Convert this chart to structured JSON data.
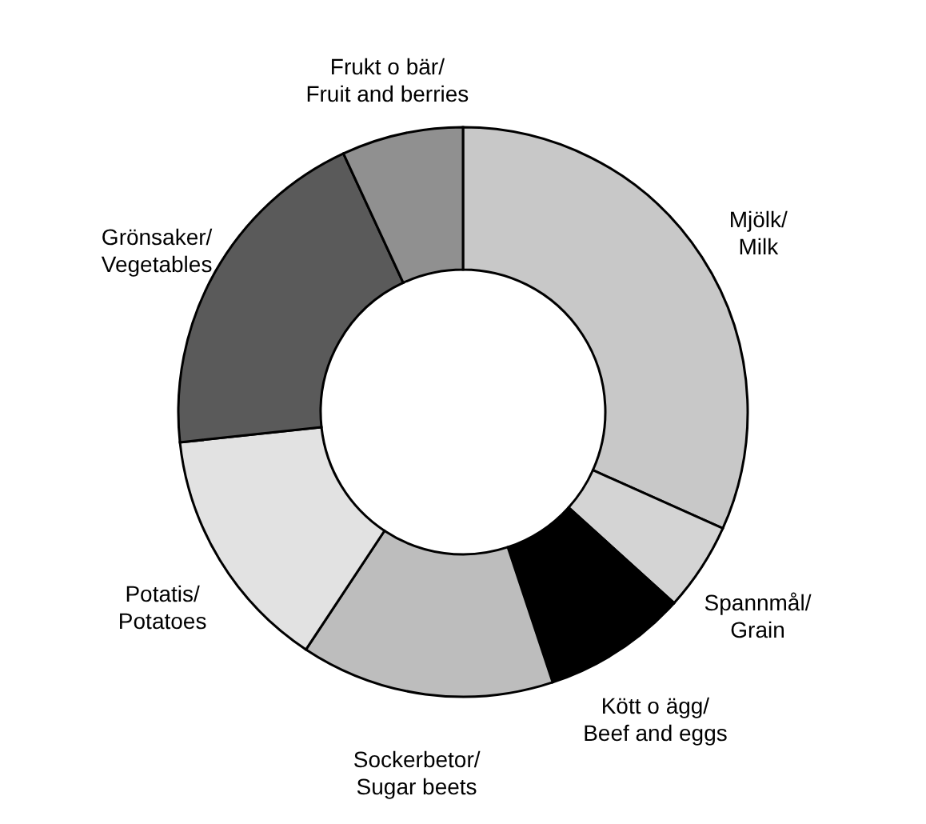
{
  "chart_data": {
    "type": "donut",
    "categories": [
      "Mjölk/Milk",
      "Spannmål/Grain",
      "Kött o ägg/Beef and eggs",
      "Sockerbetor/Sugar beets",
      "Potatis/Potatoes",
      "Grönsaker/Vegetables",
      "Frukt o bär/Fruit and berries"
    ],
    "values": [
      31.7,
      5.0,
      8.2,
      14.4,
      14.0,
      19.8,
      6.9
    ],
    "colors": [
      "#c8c8c8",
      "#d4d4d4",
      "#000000",
      "#bdbdbd",
      "#e2e2e2",
      "#5a5a5a",
      "#909090"
    ]
  }
}
